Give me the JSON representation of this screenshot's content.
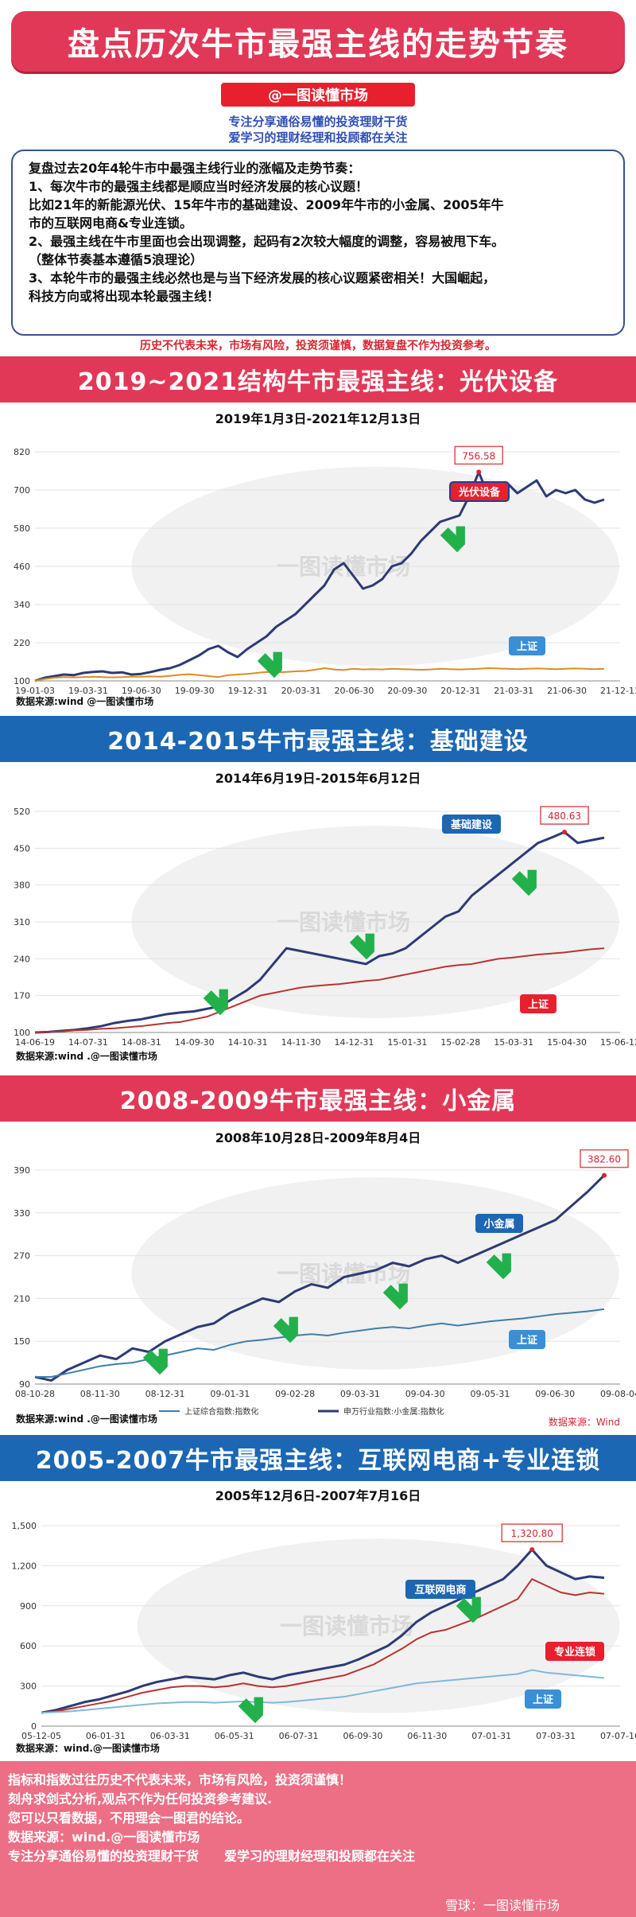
{
  "header": {
    "title": "盘点历次牛市最强主线的走势节奏",
    "author": "@一图读懂市场",
    "tagline1": "专注分享通俗易懂的投资理财干货",
    "tagline2": "爱学习的理财经理和投顾都在关注"
  },
  "intro": {
    "lines": [
      "复盘过去20年4轮牛市中最强主线行业的涨幅及走势节奏：",
      "1、每次牛市的最强主线都是顺应当时经济发展的核心议题！",
      "比如21年的新能源光伏、15年牛市的基础建设、2009年牛市的小金属、2005年牛",
      "市的互联网电商&专业连锁。",
      "2、最强主线在牛市里面也会出现调整，起码有2次较大幅度的调整，容易被甩下车。",
      "（整体节奏基本遵循5浪理论）",
      "3、本轮牛市的最强主线必然也是与当下经济发展的核心议题紧密相关！大国崛起，",
      "科技方向或将出现本轮最强主线！"
    ],
    "disclaimer": "历史不代表未来，市场有风险，投资须谨慎，数据复盘不作为投资参考。"
  },
  "sections": [
    {
      "heading": "2019~2021结构牛市最强主线：光伏设备"
    },
    {
      "heading": "2014-2015牛市最强主线：基础建设"
    },
    {
      "heading": "2008-2009牛市最强主线：小金属"
    },
    {
      "heading": "2005-2007牛市最强主线：互联网电商+专业连锁"
    }
  ],
  "watermark": "一图读懂市场",
  "chart_data": [
    {
      "type": "line",
      "title": "2019年1月3日-2021年12月13日",
      "yticks": [
        100,
        220,
        340,
        460,
        580,
        700,
        820
      ],
      "ylim": [
        100,
        820
      ],
      "xticks": [
        "19-01-03",
        "19-03-31",
        "19-06-30",
        "19-09-30",
        "19-12-31",
        "20-03-31",
        "20-06-30",
        "20-09-30",
        "20-12-31",
        "21-03-31",
        "21-06-30",
        "21-12-13"
      ],
      "series": [
        {
          "name": "光伏设备",
          "color": "#2d3a75",
          "values": [
            100,
            110,
            115,
            120,
            118,
            125,
            128,
            130,
            125,
            127,
            120,
            122,
            128,
            135,
            140,
            150,
            165,
            180,
            200,
            210,
            190,
            175,
            200,
            220,
            240,
            270,
            290,
            310,
            340,
            370,
            400,
            450,
            470,
            430,
            390,
            400,
            420,
            460,
            470,
            500,
            540,
            570,
            600,
            610,
            620,
            680,
            756.58,
            680,
            700,
            720,
            690,
            710,
            730,
            680,
            700,
            690,
            700,
            670,
            660,
            670
          ]
        },
        {
          "name": "上证",
          "color": "#d98c2a",
          "values": [
            100,
            106,
            110,
            112,
            111,
            112,
            113,
            112,
            111,
            112,
            113,
            113,
            114,
            113,
            116,
            119,
            121,
            118,
            115,
            112,
            118,
            120,
            122,
            125,
            128,
            127,
            128,
            130,
            131,
            135,
            140,
            136,
            134,
            138,
            136,
            137,
            136,
            138,
            137,
            136,
            135,
            136,
            138,
            137,
            136,
            137,
            138,
            140,
            139,
            138,
            137,
            138,
            139,
            138,
            137,
            138,
            139,
            138,
            137,
            138
          ]
        }
      ],
      "peak_label": "756.58",
      "series_labels": [
        "光伏设备",
        "上证"
      ],
      "source": "数据来源:wind @一图读懂市场"
    },
    {
      "type": "line",
      "title": "2014年6月19日-2015年6月12日",
      "yticks": [
        100,
        170,
        240,
        310,
        380,
        450,
        520
      ],
      "ylim": [
        100,
        520
      ],
      "xticks": [
        "14-06-19",
        "14-07-31",
        "14-08-31",
        "14-09-30",
        "14-10-31",
        "14-11-30",
        "14-12-31",
        "15-01-31",
        "15-02-28",
        "15-03-31",
        "15-04-30",
        "15-06-12"
      ],
      "series": [
        {
          "name": "基础建设",
          "color": "#2d3a75",
          "values": [
            100,
            101,
            103,
            105,
            108,
            112,
            118,
            122,
            125,
            130,
            135,
            138,
            140,
            145,
            150,
            165,
            180,
            200,
            230,
            260,
            255,
            250,
            245,
            240,
            235,
            230,
            245,
            250,
            260,
            280,
            300,
            320,
            330,
            360,
            380,
            400,
            420,
            440,
            460,
            470,
            480.63,
            460,
            465,
            470
          ]
        },
        {
          "name": "上证",
          "color": "#b8342e",
          "values": [
            100,
            101,
            102,
            104,
            105,
            107,
            108,
            110,
            112,
            115,
            118,
            120,
            125,
            130,
            140,
            150,
            160,
            170,
            175,
            180,
            185,
            188,
            190,
            192,
            195,
            198,
            200,
            205,
            210,
            215,
            220,
            225,
            228,
            230,
            235,
            240,
            242,
            245,
            248,
            250,
            252,
            255,
            258,
            260
          ]
        }
      ],
      "peak_label": "480.63",
      "series_labels": [
        "基础建设",
        "上证"
      ],
      "source": "数据来源:wind .@一图读懂市场"
    },
    {
      "type": "line",
      "title": "2008年10月28日-2009年8月4日",
      "yticks": [
        90,
        150,
        210,
        270,
        330,
        390
      ],
      "ylim": [
        90,
        400
      ],
      "xticks": [
        "08-10-28",
        "08-11-30",
        "08-12-31",
        "09-01-31",
        "09-02-28",
        "09-03-31",
        "09-04-30",
        "09-05-31",
        "09-06-30",
        "09-08-04"
      ],
      "series": [
        {
          "name": "申万行业指数:小金属:指数化",
          "color": "#2d3a75",
          "values": [
            100,
            95,
            110,
            120,
            130,
            125,
            140,
            135,
            150,
            160,
            170,
            175,
            190,
            200,
            210,
            205,
            220,
            230,
            225,
            240,
            245,
            250,
            260,
            255,
            265,
            270,
            260,
            270,
            280,
            290,
            300,
            310,
            320,
            340,
            360,
            382.6
          ]
        },
        {
          "name": "上证综合指数:指数化",
          "color": "#3f7ea8",
          "values": [
            100,
            100,
            105,
            110,
            115,
            118,
            120,
            125,
            130,
            135,
            140,
            138,
            145,
            150,
            152,
            155,
            158,
            160,
            158,
            162,
            165,
            168,
            170,
            168,
            172,
            175,
            172,
            175,
            178,
            180,
            182,
            185,
            188,
            190,
            192,
            195
          ]
        }
      ],
      "peak_label": "382.60",
      "series_labels": [
        "小金属",
        "上证"
      ],
      "legend": [
        "上证综合指数:指数化",
        "申万行业指数:小金属:指数化"
      ],
      "source_right": "数据来源：Wind",
      "source": "数据来源:wind .@一图读懂市场"
    },
    {
      "type": "line",
      "title": "2005年12月6日-2007年7月16日",
      "yticks": [
        0,
        300,
        600,
        900,
        1200,
        1500
      ],
      "ylim": [
        0,
        1500
      ],
      "xticks": [
        "05-12-05",
        "06-01-31",
        "06-03-31",
        "06-05-31",
        "06-07-31",
        "06-09-30",
        "06-11-30",
        "07-01-31",
        "07-03-31",
        "07-07-16"
      ],
      "series": [
        {
          "name": "互联网电商",
          "color": "#2d3a75",
          "values": [
            100,
            120,
            150,
            180,
            200,
            230,
            260,
            300,
            330,
            350,
            370,
            360,
            350,
            380,
            400,
            370,
            350,
            380,
            400,
            420,
            440,
            460,
            500,
            550,
            600,
            680,
            780,
            850,
            900,
            950,
            1000,
            1050,
            1100,
            1200,
            1320.8,
            1200,
            1150,
            1100,
            1120,
            1110
          ]
        },
        {
          "name": "专业连锁",
          "color": "#b8342e",
          "values": [
            100,
            110,
            130,
            150,
            170,
            190,
            220,
            250,
            270,
            290,
            300,
            300,
            290,
            300,
            320,
            300,
            290,
            300,
            320,
            340,
            360,
            380,
            420,
            460,
            520,
            580,
            650,
            700,
            720,
            760,
            800,
            850,
            900,
            950,
            1100,
            1050,
            1000,
            980,
            1000,
            990
          ]
        },
        {
          "name": "上证",
          "color": "#7fb8d9",
          "values": [
            100,
            105,
            110,
            120,
            130,
            140,
            150,
            160,
            170,
            175,
            180,
            180,
            175,
            180,
            185,
            180,
            175,
            180,
            190,
            200,
            210,
            220,
            240,
            260,
            280,
            300,
            320,
            330,
            340,
            350,
            360,
            370,
            380,
            390,
            420,
            400,
            390,
            380,
            370,
            360
          ]
        }
      ],
      "peak_label": "1,320.80",
      "series_labels": [
        "互联网电商",
        "专业连锁",
        "上证"
      ],
      "source": "数据来源：wind.@一图读懂市场"
    }
  ],
  "footer": {
    "lines": [
      "指标和指数过往历史不代表未来，市场有风险，投资须谨慎！",
      "刻舟求剑式分析,观点不作为任何投资参考建议.",
      "您可以只看数据，不用理会一图君的结论。",
      "数据来源：wind.@一图读懂市场",
      "专注分享通俗易懂的投资理财干货　　爱学习的理财经理和投顾都在关注"
    ],
    "watermark": "雪球：一图读懂市场"
  },
  "colors": {
    "accent_red": "#e23857",
    "accent_blue": "#1c67b4",
    "line_navy": "#2d3a75"
  }
}
